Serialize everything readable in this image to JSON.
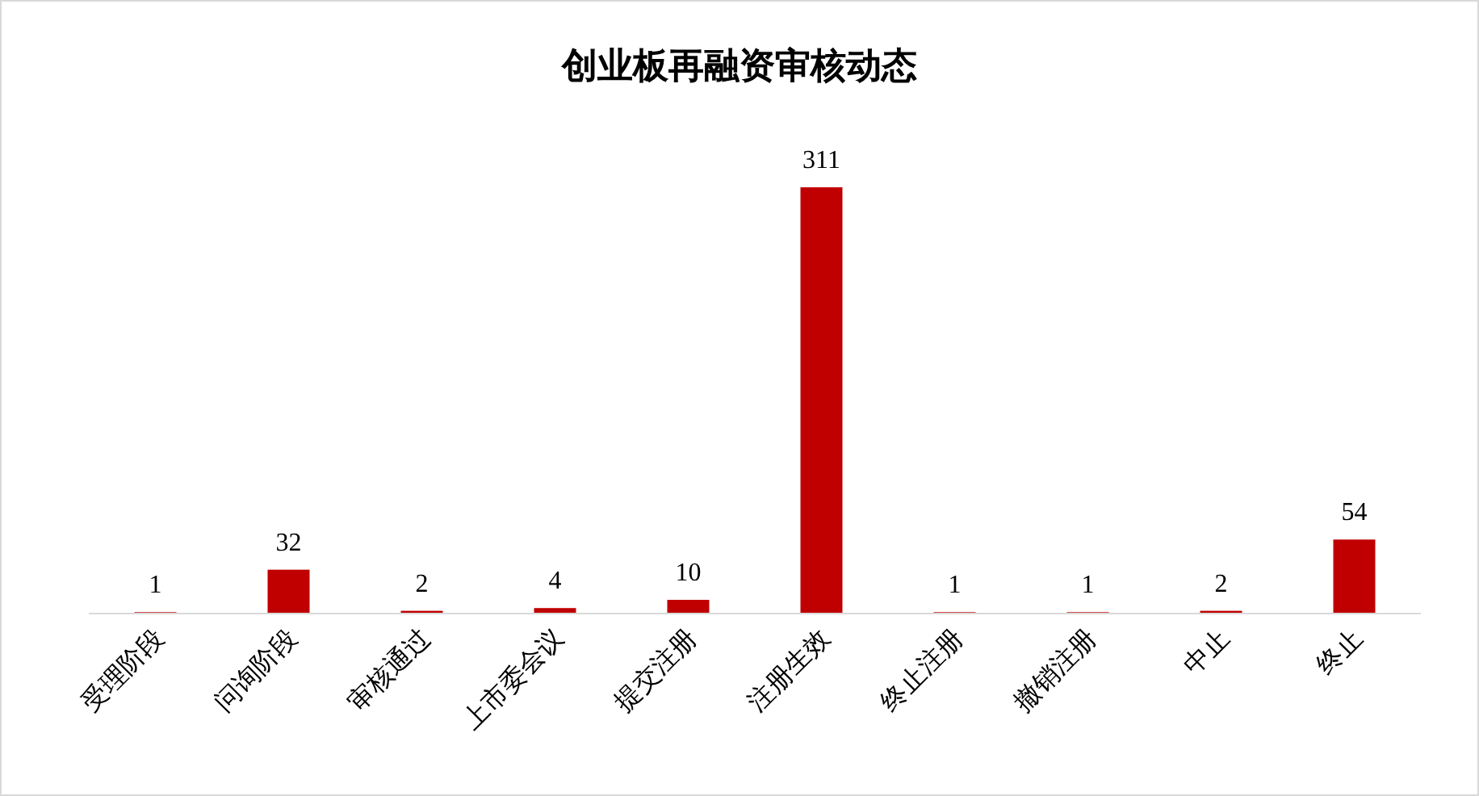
{
  "chart_data": {
    "type": "bar",
    "title": "创业板再融资审核动态",
    "categories": [
      "受理阶段",
      "问询阶段",
      "审核通过",
      "上市委会议",
      "提交注册",
      "注册生效",
      "终止注册",
      "撤销注册",
      "中止",
      "终止"
    ],
    "values": [
      1,
      32,
      2,
      4,
      10,
      311,
      1,
      1,
      2,
      54
    ],
    "color": "#c00000",
    "data_labels": true
  }
}
